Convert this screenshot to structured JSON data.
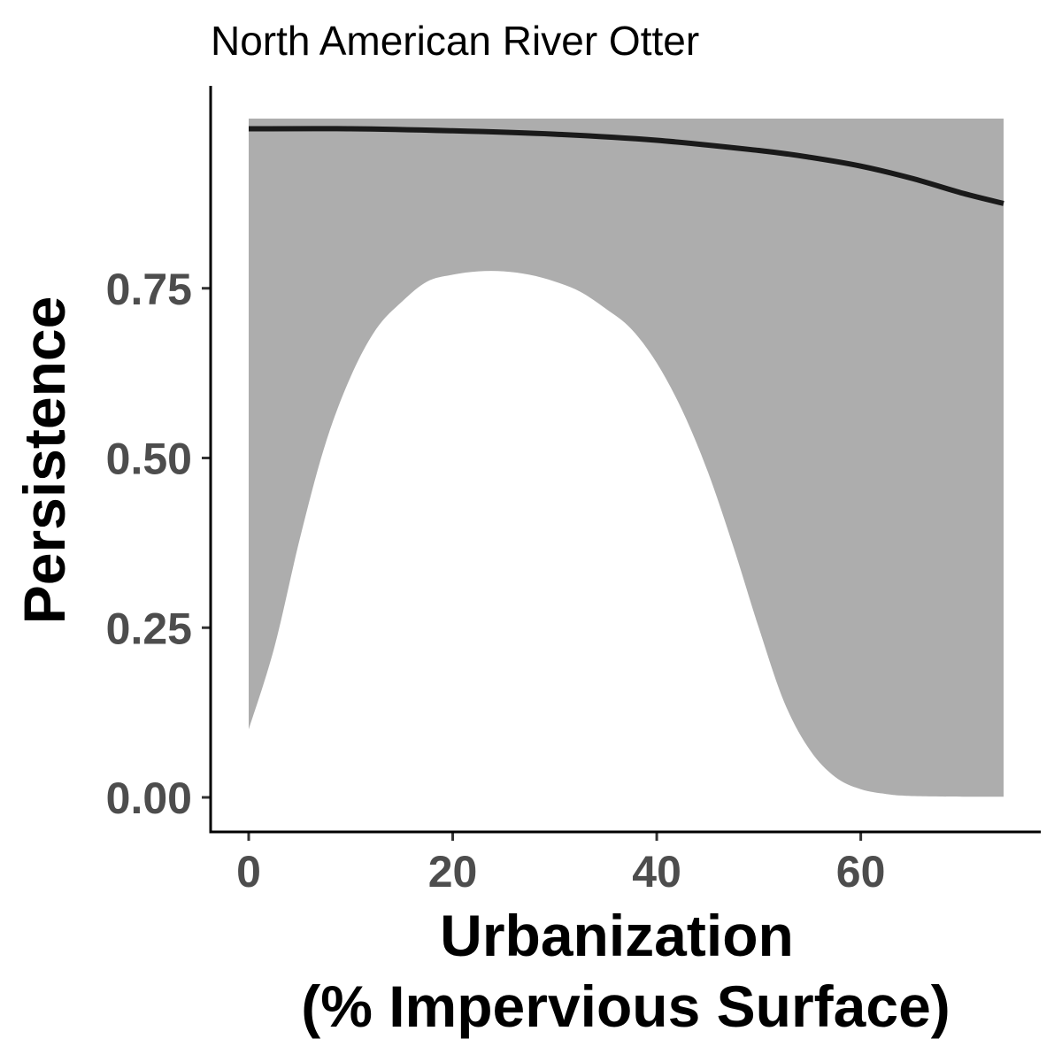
{
  "chart_data": {
    "type": "area",
    "title": "North American River Otter",
    "xlabel_lines": [
      "Urbanization",
      "(% Impervious Surface)"
    ],
    "ylabel": "Persistence",
    "xlim": [
      0,
      74
    ],
    "ylim": [
      0,
      1
    ],
    "x_ticks": [
      0,
      20,
      40,
      60
    ],
    "x_tick_labels": [
      "0",
      "20",
      "40",
      "60"
    ],
    "y_ticks": [
      0,
      0.25,
      0.5,
      0.75
    ],
    "y_tick_labels": [
      "0.00",
      "0.25",
      "0.50",
      "0.75"
    ],
    "grid": false,
    "legend": "none",
    "colors": {
      "ribbon": "#adadad",
      "line": "#1a1a1a",
      "axis": "#000000"
    },
    "series": [
      {
        "kind": "line",
        "x": [
          0,
          10,
          20,
          30,
          40,
          50,
          55,
          60,
          65,
          70,
          74
        ],
        "y": [
          0.985,
          0.985,
          0.982,
          0.977,
          0.968,
          0.953,
          0.943,
          0.93,
          0.912,
          0.89,
          0.875
        ]
      },
      {
        "kind": "ribbon",
        "x": [
          0,
          2.5,
          5,
          7.5,
          10,
          12.5,
          15,
          17.5,
          20,
          22.5,
          25,
          27.5,
          30,
          32.5,
          35,
          37.5,
          40,
          42.5,
          45,
          47.5,
          50,
          52.5,
          55,
          57.5,
          60,
          62.5,
          65,
          70,
          74
        ],
        "lower": [
          0.1,
          0.22,
          0.38,
          0.52,
          0.62,
          0.69,
          0.73,
          0.76,
          0.77,
          0.775,
          0.775,
          0.77,
          0.76,
          0.745,
          0.72,
          0.69,
          0.64,
          0.57,
          0.48,
          0.37,
          0.25,
          0.14,
          0.07,
          0.03,
          0.012,
          0.005,
          0.002,
          0.001,
          0.001
        ],
        "upper": [
          1,
          1,
          1,
          1,
          1,
          1,
          1,
          1,
          1,
          1,
          1,
          1,
          1,
          1,
          1,
          1,
          1,
          1,
          1,
          1,
          1,
          1,
          1,
          1,
          1,
          1,
          1,
          1,
          1
        ]
      }
    ]
  }
}
